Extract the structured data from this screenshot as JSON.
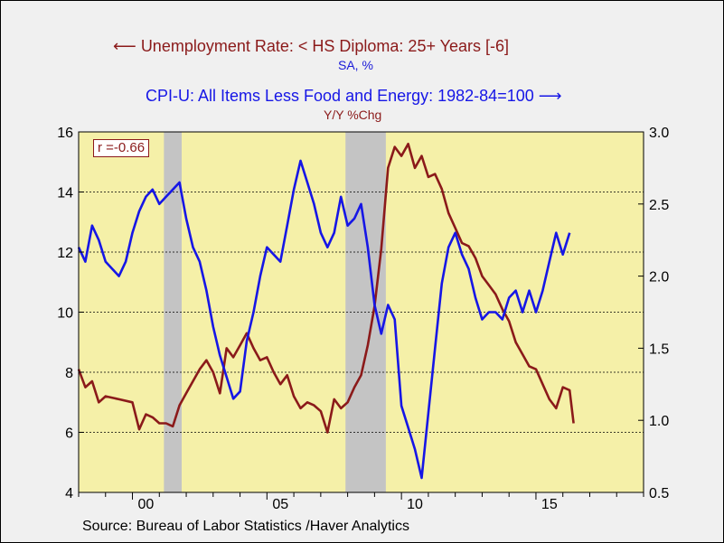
{
  "chart_data": {
    "type": "line",
    "legend": {
      "left_series_label": "Unemployment Rate: < HS Diploma: 25+ Years [-6]",
      "left_series_sublabel": "SA, %",
      "right_series_label": "CPI-U: All Items Less Food and Energy: 1982-84=100",
      "right_series_sublabel": "Y/Y %Chg"
    },
    "annotation": "r =-0.66",
    "source": "Source:  Bureau of Labor Statistics /Haver Analytics",
    "x_axis": {
      "range": [
        1998,
        2019
      ],
      "tick_labels": [
        "00",
        "05",
        "10",
        "15"
      ],
      "tick_values": [
        2000,
        2005,
        2010,
        2015
      ]
    },
    "y_left": {
      "range": [
        4,
        16
      ],
      "ticks": [
        "4",
        "6",
        "8",
        "10",
        "12",
        "14",
        "16"
      ]
    },
    "y_right": {
      "range": [
        0.5,
        3.0
      ],
      "ticks": [
        "0.5",
        "1.0",
        "1.5",
        "2.0",
        "2.5",
        "3.0"
      ]
    },
    "grid": "horizontal dotted",
    "recessions": [
      [
        2001.17,
        2001.83
      ],
      [
        2007.92,
        2009.42
      ]
    ],
    "series": [
      {
        "name": "Unemployment Rate: < HS Diploma: 25+ Years [-6]",
        "axis": "left",
        "color": "#8b1a1a",
        "points": [
          [
            1998.0,
            8.1
          ],
          [
            1998.25,
            7.5
          ],
          [
            1998.5,
            7.7
          ],
          [
            1998.75,
            7.0
          ],
          [
            1999.0,
            7.2
          ],
          [
            1999.5,
            7.1
          ],
          [
            2000.0,
            7.0
          ],
          [
            2000.25,
            6.1
          ],
          [
            2000.5,
            6.6
          ],
          [
            2000.75,
            6.5
          ],
          [
            2001.0,
            6.3
          ],
          [
            2001.25,
            6.3
          ],
          [
            2001.5,
            6.2
          ],
          [
            2001.75,
            6.9
          ],
          [
            2002.0,
            7.3
          ],
          [
            2002.5,
            8.1
          ],
          [
            2002.75,
            8.4
          ],
          [
            2003.0,
            8.0
          ],
          [
            2003.25,
            7.3
          ],
          [
            2003.5,
            8.8
          ],
          [
            2003.75,
            8.5
          ],
          [
            2004.0,
            8.9
          ],
          [
            2004.25,
            9.3
          ],
          [
            2004.5,
            8.8
          ],
          [
            2004.75,
            8.4
          ],
          [
            2005.0,
            8.5
          ],
          [
            2005.25,
            8.0
          ],
          [
            2005.5,
            7.6
          ],
          [
            2005.75,
            7.9
          ],
          [
            2006.0,
            7.2
          ],
          [
            2006.25,
            6.8
          ],
          [
            2006.5,
            7.0
          ],
          [
            2006.75,
            6.9
          ],
          [
            2007.0,
            6.7
          ],
          [
            2007.25,
            6.0
          ],
          [
            2007.5,
            7.1
          ],
          [
            2007.75,
            6.8
          ],
          [
            2008.0,
            7.0
          ],
          [
            2008.25,
            7.5
          ],
          [
            2008.5,
            7.9
          ],
          [
            2008.75,
            8.9
          ],
          [
            2009.0,
            10.2
          ],
          [
            2009.25,
            12.1
          ],
          [
            2009.5,
            14.8
          ],
          [
            2009.75,
            15.5
          ],
          [
            2010.0,
            15.2
          ],
          [
            2010.25,
            15.6
          ],
          [
            2010.5,
            14.8
          ],
          [
            2010.75,
            15.2
          ],
          [
            2011.0,
            14.5
          ],
          [
            2011.25,
            14.6
          ],
          [
            2011.5,
            14.1
          ],
          [
            2011.75,
            13.3
          ],
          [
            2012.0,
            12.8
          ],
          [
            2012.25,
            12.3
          ],
          [
            2012.5,
            12.2
          ],
          [
            2012.75,
            11.8
          ],
          [
            2013.0,
            11.2
          ],
          [
            2013.25,
            10.9
          ],
          [
            2013.5,
            10.6
          ],
          [
            2013.75,
            10.1
          ],
          [
            2014.0,
            9.7
          ],
          [
            2014.25,
            9.0
          ],
          [
            2014.5,
            8.6
          ],
          [
            2014.75,
            8.2
          ],
          [
            2015.0,
            8.1
          ],
          [
            2015.25,
            7.6
          ],
          [
            2015.5,
            7.1
          ],
          [
            2015.75,
            6.8
          ],
          [
            2016.0,
            7.5
          ],
          [
            2016.25,
            7.4
          ],
          [
            2016.4,
            6.3
          ]
        ]
      },
      {
        "name": "CPI-U: All Items Less Food and Energy: 1982-84=100",
        "axis": "right",
        "color": "#1616e6",
        "points": [
          [
            1998.0,
            2.2
          ],
          [
            1998.25,
            2.1
          ],
          [
            1998.5,
            2.35
          ],
          [
            1998.75,
            2.25
          ],
          [
            1999.0,
            2.1
          ],
          [
            1999.25,
            2.05
          ],
          [
            1999.5,
            2.0
          ],
          [
            1999.75,
            2.1
          ],
          [
            2000.0,
            2.3
          ],
          [
            2000.25,
            2.45
          ],
          [
            2000.5,
            2.55
          ],
          [
            2000.75,
            2.6
          ],
          [
            2001.0,
            2.5
          ],
          [
            2001.25,
            2.55
          ],
          [
            2001.5,
            2.6
          ],
          [
            2001.75,
            2.65
          ],
          [
            2002.0,
            2.4
          ],
          [
            2002.25,
            2.2
          ],
          [
            2002.5,
            2.1
          ],
          [
            2002.75,
            1.9
          ],
          [
            2003.0,
            1.65
          ],
          [
            2003.25,
            1.45
          ],
          [
            2003.5,
            1.3
          ],
          [
            2003.75,
            1.15
          ],
          [
            2004.0,
            1.2
          ],
          [
            2004.25,
            1.55
          ],
          [
            2004.5,
            1.75
          ],
          [
            2004.75,
            2.0
          ],
          [
            2005.0,
            2.2
          ],
          [
            2005.25,
            2.15
          ],
          [
            2005.5,
            2.1
          ],
          [
            2005.75,
            2.35
          ],
          [
            2006.0,
            2.6
          ],
          [
            2006.25,
            2.8
          ],
          [
            2006.5,
            2.65
          ],
          [
            2006.75,
            2.5
          ],
          [
            2007.0,
            2.3
          ],
          [
            2007.25,
            2.2
          ],
          [
            2007.5,
            2.3
          ],
          [
            2007.75,
            2.55
          ],
          [
            2008.0,
            2.35
          ],
          [
            2008.25,
            2.4
          ],
          [
            2008.5,
            2.5
          ],
          [
            2008.75,
            2.2
          ],
          [
            2009.0,
            1.8
          ],
          [
            2009.25,
            1.6
          ],
          [
            2009.5,
            1.8
          ],
          [
            2009.75,
            1.7
          ],
          [
            2010.0,
            1.1
          ],
          [
            2010.25,
            0.95
          ],
          [
            2010.5,
            0.8
          ],
          [
            2010.75,
            0.6
          ],
          [
            2011.0,
            1.05
          ],
          [
            2011.25,
            1.5
          ],
          [
            2011.5,
            1.95
          ],
          [
            2011.75,
            2.2
          ],
          [
            2012.0,
            2.3
          ],
          [
            2012.25,
            2.15
          ],
          [
            2012.5,
            2.05
          ],
          [
            2012.75,
            1.85
          ],
          [
            2013.0,
            1.7
          ],
          [
            2013.25,
            1.75
          ],
          [
            2013.5,
            1.75
          ],
          [
            2013.75,
            1.7
          ],
          [
            2014.0,
            1.85
          ],
          [
            2014.25,
            1.9
          ],
          [
            2014.5,
            1.75
          ],
          [
            2014.75,
            1.9
          ],
          [
            2015.0,
            1.75
          ],
          [
            2015.25,
            1.9
          ],
          [
            2015.5,
            2.1
          ],
          [
            2015.75,
            2.3
          ],
          [
            2016.0,
            2.15
          ],
          [
            2016.25,
            2.3
          ]
        ]
      }
    ]
  }
}
